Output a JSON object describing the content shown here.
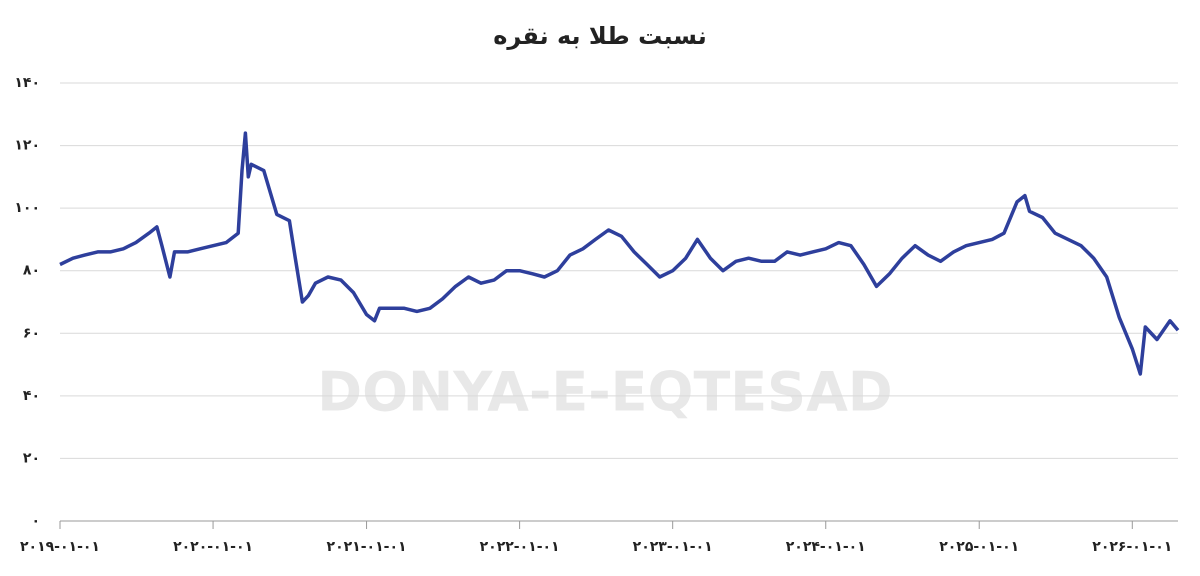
{
  "chart_data": {
    "type": "line",
    "title": "نسبت طلا به نقره",
    "watermark": "DONYA-E-EQTESAD",
    "grid": true,
    "ylim": [
      0,
      140
    ],
    "yticks": [
      {
        "value": 0,
        "label": "۰"
      },
      {
        "value": 20,
        "label": "۲۰"
      },
      {
        "value": 40,
        "label": "۴۰"
      },
      {
        "value": 60,
        "label": "۶۰"
      },
      {
        "value": 80,
        "label": "۸۰"
      },
      {
        "value": 100,
        "label": "۱۰۰"
      },
      {
        "value": 120,
        "label": "۱۲۰"
      },
      {
        "value": 140,
        "label": "۱۴۰"
      }
    ],
    "xlim": [
      "2019-01-01",
      "2026-04-20"
    ],
    "xticks": [
      {
        "value": "2019-01-01",
        "label": "۲۰۱۹-۰۱-۰۱"
      },
      {
        "value": "2020-01-01",
        "label": "۲۰۲۰-۰۱-۰۱"
      },
      {
        "value": "2021-01-01",
        "label": "۲۰۲۱-۰۱-۰۱"
      },
      {
        "value": "2022-01-01",
        "label": "۲۰۲۲-۰۱-۰۱"
      },
      {
        "value": "2023-01-01",
        "label": "۲۰۲۳-۰۱-۰۱"
      },
      {
        "value": "2024-01-01",
        "label": "۲۰۲۴-۰۱-۰۱"
      },
      {
        "value": "2025-01-01",
        "label": "۲۰۲۵-۰۱-۰۱"
      },
      {
        "value": "2026-01-01",
        "label": "۲۰۲۶-۰۱-۰۱"
      }
    ],
    "x": [
      "2019-01-01",
      "2019-02-01",
      "2019-03-01",
      "2019-04-01",
      "2019-05-01",
      "2019-06-01",
      "2019-07-01",
      "2019-08-01",
      "2019-08-20",
      "2019-09-01",
      "2019-09-20",
      "2019-10-01",
      "2019-11-01",
      "2019-12-01",
      "2020-01-01",
      "2020-02-01",
      "2020-03-01",
      "2020-03-10",
      "2020-03-18",
      "2020-03-25",
      "2020-04-01",
      "2020-05-01",
      "2020-06-01",
      "2020-07-01",
      "2020-07-15",
      "2020-08-01",
      "2020-08-15",
      "2020-09-01",
      "2020-10-01",
      "2020-11-01",
      "2020-12-01",
      "2021-01-01",
      "2021-01-20",
      "2021-02-01",
      "2021-03-01",
      "2021-04-01",
      "2021-05-01",
      "2021-06-01",
      "2021-07-01",
      "2021-08-01",
      "2021-09-01",
      "2021-10-01",
      "2021-11-01",
      "2021-12-01",
      "2022-01-01",
      "2022-02-01",
      "2022-03-01",
      "2022-04-01",
      "2022-05-01",
      "2022-06-01",
      "2022-07-01",
      "2022-08-01",
      "2022-09-01",
      "2022-10-01",
      "2022-11-01",
      "2022-12-01",
      "2023-01-01",
      "2023-02-01",
      "2023-03-01",
      "2023-04-01",
      "2023-05-01",
      "2023-06-01",
      "2023-07-01",
      "2023-08-01",
      "2023-09-01",
      "2023-10-01",
      "2023-11-01",
      "2023-12-01",
      "2024-01-01",
      "2024-02-01",
      "2024-03-01",
      "2024-04-01",
      "2024-05-01",
      "2024-06-01",
      "2024-07-01",
      "2024-08-01",
      "2024-09-01",
      "2024-10-01",
      "2024-11-01",
      "2024-12-01",
      "2025-01-01",
      "2025-02-01",
      "2025-03-01",
      "2025-04-01",
      "2025-04-20",
      "2025-05-01",
      "2025-06-01",
      "2025-07-01",
      "2025-08-01",
      "2025-09-01",
      "2025-10-01",
      "2025-11-01",
      "2025-12-01",
      "2026-01-01",
      "2026-01-20",
      "2026-02-01",
      "2026-03-01",
      "2026-04-01",
      "2026-04-20"
    ],
    "series": [
      {
        "name": "نسبت طلا به نقره",
        "color": "#2e3f9c",
        "values": [
          82,
          84,
          85,
          86,
          86,
          87,
          89,
          92,
          94,
          88,
          78,
          86,
          86,
          87,
          88,
          89,
          92,
          112,
          124,
          110,
          114,
          112,
          98,
          96,
          84,
          70,
          72,
          76,
          78,
          77,
          73,
          66,
          64,
          68,
          68,
          68,
          67,
          68,
          71,
          75,
          78,
          76,
          77,
          80,
          80,
          79,
          78,
          80,
          85,
          87,
          90,
          93,
          91,
          86,
          82,
          78,
          80,
          84,
          90,
          84,
          80,
          83,
          84,
          83,
          83,
          86,
          85,
          86,
          87,
          89,
          88,
          82,
          75,
          79,
          84,
          88,
          85,
          83,
          86,
          88,
          89,
          90,
          92,
          102,
          104,
          99,
          97,
          92,
          90,
          88,
          84,
          78,
          65,
          55,
          47,
          62,
          58,
          64,
          61
        ]
      }
    ]
  }
}
